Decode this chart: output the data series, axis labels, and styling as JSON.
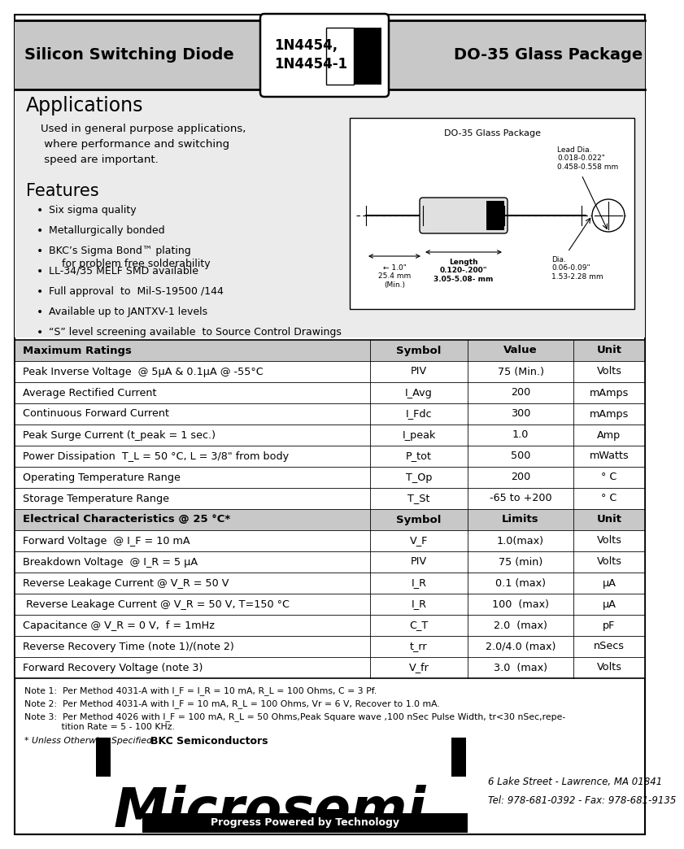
{
  "title_left": "Silicon Switching Diode",
  "title_center": "1N4454,\n1N4454-1",
  "title_right": "DO-35 Glass Package",
  "bg_color": "#ffffff",
  "applications_title": "Applications",
  "applications_text": "Used in general purpose applications,\n where performance and switching\n speed are important.",
  "features_title": "Features",
  "features": [
    "Six sigma quality",
    "Metallurgically bonded",
    "BKC’s Sigma Bond™ plating\n    for problem free solderability",
    "LL-34/35 MELF SMD available",
    "Full approval  to  Mil-S-19500 /144",
    "Available up to JANTXV-1 levels",
    "“S” level screening available  to Source Control Drawings"
  ],
  "max_ratings_header": [
    "Maximum Ratings",
    "Symbol",
    "Value",
    "Unit"
  ],
  "max_ratings_rows": [
    [
      "Peak Inverse Voltage  @ 5μA & 0.1μA @ -55°C",
      "PIV",
      "75 (Min.)",
      "Volts"
    ],
    [
      "Average Rectified Current",
      "I_Avg",
      "200",
      "mAmps"
    ],
    [
      "Continuous Forward Current",
      "I_Fdc",
      "300",
      "mAmps"
    ],
    [
      "Peak Surge Current (t_peak = 1 sec.)",
      "I_peak",
      "1.0",
      "Amp"
    ],
    [
      "Power Dissipation  T_L = 50 °C, L = 3/8\" from body",
      "P_tot",
      "500",
      "mWatts"
    ],
    [
      "Operating Temperature Range",
      "T_Op",
      "200",
      "° C"
    ],
    [
      "Storage Temperature Range",
      "T_St",
      "-65 to +200",
      "° C"
    ]
  ],
  "elec_char_header": [
    "Electrical Characteristics @ 25 °C*",
    "Symbol",
    "Limits",
    "Unit"
  ],
  "elec_char_rows": [
    [
      "Forward Voltage  @ I_F = 10 mA",
      "V_F",
      "1.0(max)",
      "Volts"
    ],
    [
      "Breakdown Voltage  @ I_R = 5 μA",
      "PIV",
      "75 (min)",
      "Volts"
    ],
    [
      "Reverse Leakage Current @ V_R = 50 V",
      "I_R",
      "0.1 (max)",
      "μA"
    ],
    [
      " Reverse Leakage Current @ V_R = 50 V, T=150 °C",
      "I_R",
      "100  (max)",
      "μA"
    ],
    [
      "Capacitance @ V_R = 0 V,  f = 1mHz",
      "C_T",
      "2.0  (max)",
      "pF"
    ],
    [
      "Reverse Recovery Time (note 1)/(note 2)",
      "t_rr",
      "2.0/4.0 (max)",
      "nSecs"
    ],
    [
      "Forward Recovery Voltage (note 3)",
      "V_fr",
      "3.0  (max)",
      "Volts"
    ]
  ],
  "notes": [
    "Note 1:  Per Method 4031-A with I_F = I_R = 10 mA, R_L = 100 Ohms, C = 3 Pf.",
    "Note 2:  Per Method 4031-A with I_F = 10 mA, R_L = 100 Ohms, Vr = 6 V, Recover to 1.0 mA.",
    "Note 3:  Per Method 4026 with I_F = 100 mA, R_L = 50 Ohms,Peak Square wave ,100 nSec Pulse Width, tr<30 nSec,repe-\n             tition Rate = 5 - 100 KHz.",
    "* Unless Otherwise Specified"
  ],
  "company_name": "Microsemi",
  "company_sub": "BKC Semiconductors",
  "company_tag": "Progress Powered by Technology",
  "address": "6 Lake Street - Lawrence, MA 01841",
  "tel": "Tel: 978-681-0392 - Fax: 978-681-9135",
  "header_gray": "#c8c8c8",
  "section_gray": "#ebebeb",
  "table_header_gray": "#c8c8c8"
}
